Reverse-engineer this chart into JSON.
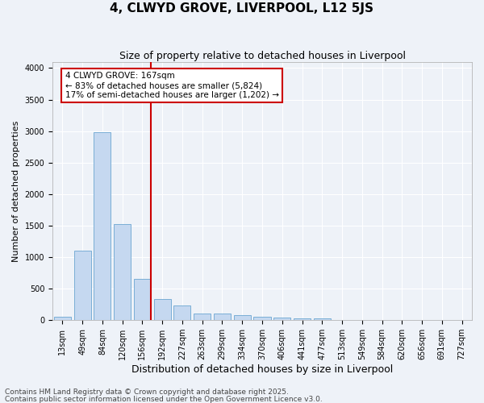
{
  "title": "4, CLWYD GROVE, LIVERPOOL, L12 5JS",
  "subtitle": "Size of property relative to detached houses in Liverpool",
  "xlabel": "Distribution of detached houses by size in Liverpool",
  "ylabel": "Number of detached properties",
  "bins": [
    "13sqm",
    "49sqm",
    "84sqm",
    "120sqm",
    "156sqm",
    "192sqm",
    "227sqm",
    "263sqm",
    "299sqm",
    "334sqm",
    "370sqm",
    "406sqm",
    "441sqm",
    "477sqm",
    "513sqm",
    "549sqm",
    "584sqm",
    "620sqm",
    "656sqm",
    "691sqm",
    "727sqm"
  ],
  "values": [
    50,
    1100,
    2980,
    1520,
    650,
    340,
    235,
    105,
    105,
    75,
    50,
    35,
    30,
    25,
    5,
    5,
    3,
    2,
    2,
    1,
    1
  ],
  "bar_color": "#c5d8f0",
  "bar_edgecolor": "#7aaed6",
  "redline_color": "#cc0000",
  "annotation_text": "4 CLWYD GROVE: 167sqm\n← 83% of detached houses are smaller (5,824)\n17% of semi-detached houses are larger (1,202) →",
  "annotation_box_edgecolor": "#cc0000",
  "annotation_box_facecolor": "#ffffff",
  "ylim": [
    0,
    4100
  ],
  "yticks": [
    0,
    500,
    1000,
    1500,
    2000,
    2500,
    3000,
    3500,
    4000
  ],
  "footer1": "Contains HM Land Registry data © Crown copyright and database right 2025.",
  "footer2": "Contains public sector information licensed under the Open Government Licence v3.0.",
  "bg_color": "#eef2f8",
  "plot_bg_color": "#eef2f8",
  "grid_color": "#ffffff",
  "title_fontsize": 11,
  "subtitle_fontsize": 9,
  "xlabel_fontsize": 9,
  "ylabel_fontsize": 8,
  "tick_fontsize": 7,
  "annot_fontsize": 7.5,
  "footer_fontsize": 6.5
}
